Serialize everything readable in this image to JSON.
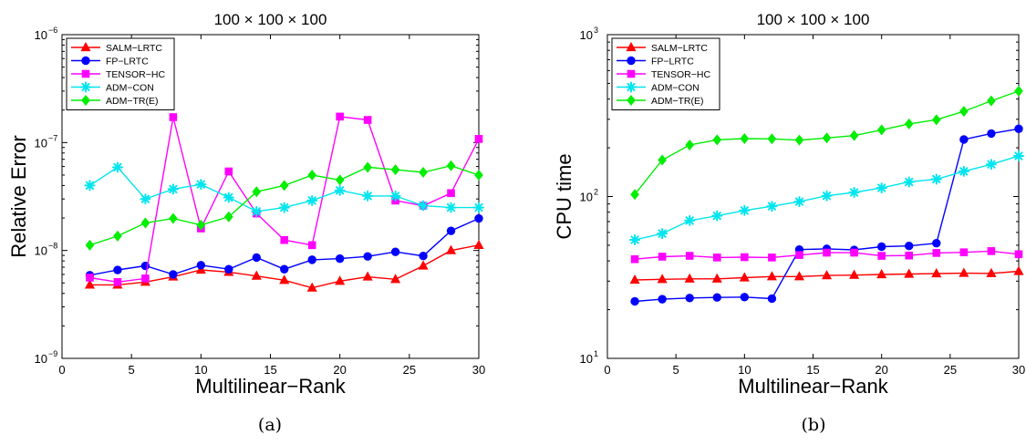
{
  "figure": {
    "panels": [
      {
        "title": "100 × 100 × 100",
        "caption": "(a)"
      },
      {
        "title": "100 × 100 × 100",
        "caption": "(b)"
      }
    ]
  },
  "chart_data": [
    {
      "type": "line",
      "title": "100 × 100 × 100",
      "xlabel": "Multilinear−Rank",
      "ylabel": "Relative Error",
      "yscale": "log",
      "xlim": [
        0,
        30
      ],
      "ylim": [
        1e-09,
        1e-06
      ],
      "x_ticks": [
        0,
        5,
        10,
        15,
        20,
        25,
        30
      ],
      "y_ticks": [
        {
          "value": 1e-09,
          "base": "10",
          "exp": "−9"
        },
        {
          "value": 1e-08,
          "base": "10",
          "exp": "−8"
        },
        {
          "value": 1e-07,
          "base": "10",
          "exp": "−7"
        },
        {
          "value": 1e-06,
          "base": "10",
          "exp": "−6"
        }
      ],
      "grid": false,
      "legend_position": "top-left",
      "x": [
        2,
        4,
        6,
        8,
        10,
        12,
        14,
        16,
        18,
        20,
        22,
        24,
        26,
        28,
        30
      ],
      "series": [
        {
          "name": "SALM−LRTC",
          "color": "#ff0000",
          "marker": "triangle",
          "values": [
            4.8e-09,
            4.8e-09,
            5.1e-09,
            5.7e-09,
            6.6e-09,
            6.3e-09,
            5.8e-09,
            5.3e-09,
            4.5e-09,
            5.2e-09,
            5.7e-09,
            5.4e-09,
            7.2e-09,
            1e-08,
            1.12e-08
          ]
        },
        {
          "name": "FP−LRTC",
          "color": "#0000ff",
          "marker": "circle",
          "values": [
            5.9e-09,
            6.6e-09,
            7.2e-09,
            6e-09,
            7.3e-09,
            6.7e-09,
            8.6e-09,
            6.7e-09,
            8.2e-09,
            8.4e-09,
            8.8e-09,
            9.7e-09,
            8.9e-09,
            1.52e-08,
            1.98e-08
          ]
        },
        {
          "name": "TENSOR−HC",
          "color": "#ff00ff",
          "marker": "square",
          "values": [
            5.6e-09,
            5.1e-09,
            5.5e-09,
            1.72e-07,
            1.6e-08,
            5.4e-08,
            2.2e-08,
            1.25e-08,
            1.12e-08,
            1.74e-07,
            1.62e-07,
            2.9e-08,
            2.6e-08,
            3.4e-08,
            1.08e-07
          ]
        },
        {
          "name": "ADM−CON",
          "color": "#00e5ee",
          "marker": "asterisk",
          "values": [
            4e-08,
            5.9e-08,
            3e-08,
            3.7e-08,
            4.1e-08,
            3.1e-08,
            2.3e-08,
            2.5e-08,
            2.9e-08,
            3.6e-08,
            3.2e-08,
            3.2e-08,
            2.6e-08,
            2.5e-08,
            2.5e-08
          ]
        },
        {
          "name": "ADM−TR(E)",
          "color": "#00ee00",
          "marker": "diamond",
          "values": [
            1.12e-08,
            1.36e-08,
            1.8e-08,
            1.98e-08,
            1.72e-08,
            2.05e-08,
            3.5e-08,
            4e-08,
            5e-08,
            4.5e-08,
            5.9e-08,
            5.6e-08,
            5.3e-08,
            6.1e-08,
            5e-08
          ]
        }
      ]
    },
    {
      "type": "line",
      "title": "100 × 100 × 100",
      "xlabel": "Multilinear−Rank",
      "ylabel": "CPU time",
      "yscale": "log",
      "xlim": [
        0,
        30
      ],
      "ylim": [
        10,
        1000
      ],
      "x_ticks": [
        0,
        5,
        10,
        15,
        20,
        25,
        30
      ],
      "y_ticks": [
        {
          "value": 10,
          "base": "10",
          "exp": "1"
        },
        {
          "value": 100,
          "base": "10",
          "exp": "2"
        },
        {
          "value": 1000,
          "base": "10",
          "exp": "3"
        }
      ],
      "grid": false,
      "legend_position": "top-left",
      "x": [
        2,
        4,
        6,
        8,
        10,
        12,
        14,
        16,
        18,
        20,
        22,
        24,
        26,
        28,
        30
      ],
      "series": [
        {
          "name": "SALM−LRTC",
          "color": "#ff0000",
          "marker": "triangle",
          "values": [
            30.5,
            30.8,
            31.0,
            31.0,
            31.5,
            32.0,
            32.0,
            32.5,
            32.7,
            33.0,
            33.2,
            33.4,
            33.6,
            33.5,
            34.5
          ]
        },
        {
          "name": "FP−LRTC",
          "color": "#0000ff",
          "marker": "circle",
          "values": [
            22.5,
            23.2,
            23.6,
            23.8,
            23.9,
            23.4,
            47.0,
            47.5,
            46.8,
            49.0,
            49.5,
            51.5,
            225,
            245,
            262
          ]
        },
        {
          "name": "TENSOR−HC",
          "color": "#ff00ff",
          "marker": "square",
          "values": [
            41.0,
            42.5,
            43.0,
            42.0,
            42.2,
            42.0,
            43.5,
            45.0,
            45.0,
            43.0,
            43.2,
            44.8,
            45.2,
            46.0,
            44.0
          ]
        },
        {
          "name": "ADM−CON",
          "color": "#00e5ee",
          "marker": "asterisk",
          "values": [
            54.0,
            59.0,
            71.0,
            76.0,
            82.0,
            87.0,
            93.0,
            101.0,
            106.0,
            113.0,
            123.0,
            128.0,
            143.0,
            158.0,
            178.0
          ]
        },
        {
          "name": "ADM−TR(E)",
          "color": "#00ee00",
          "marker": "diamond",
          "values": [
            103,
            168,
            208,
            224,
            228,
            227,
            223,
            230,
            238,
            258,
            281,
            298,
            336,
            390,
            448
          ]
        }
      ]
    }
  ]
}
